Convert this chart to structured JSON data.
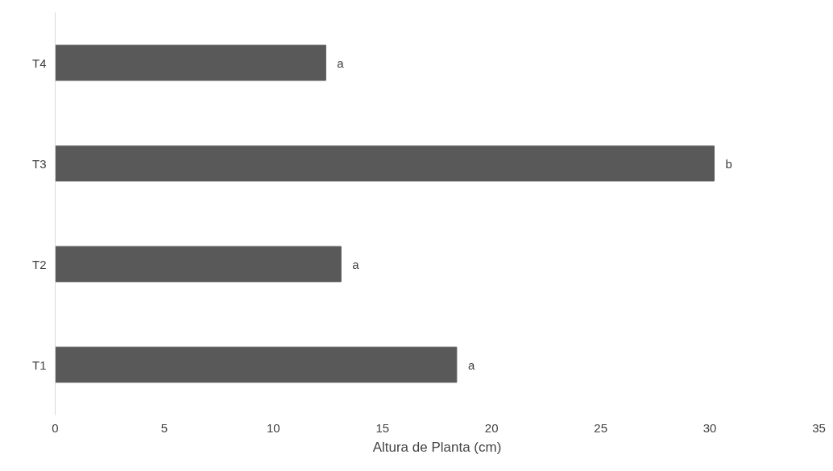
{
  "chart_data": {
    "type": "bar",
    "orientation": "horizontal",
    "xlabel": "Altura de Planta (cm)",
    "categories": [
      "T4",
      "T3",
      "T2",
      "T1"
    ],
    "values": [
      12.4,
      30.2,
      13.1,
      18.4
    ],
    "color": "#595959",
    "xlim": [
      0,
      35
    ],
    "xticks": [
      0,
      5,
      10,
      15,
      20,
      25,
      30,
      35
    ],
    "annotations": [
      {
        "text": "a",
        "x": 12.4,
        "y": "T4"
      },
      {
        "text": "b",
        "x": 30.2,
        "y": "T3"
      },
      {
        "text": "a",
        "x": 13.1,
        "y": "T2"
      },
      {
        "text": "a",
        "x": 18.4,
        "y": "T1"
      }
    ]
  }
}
